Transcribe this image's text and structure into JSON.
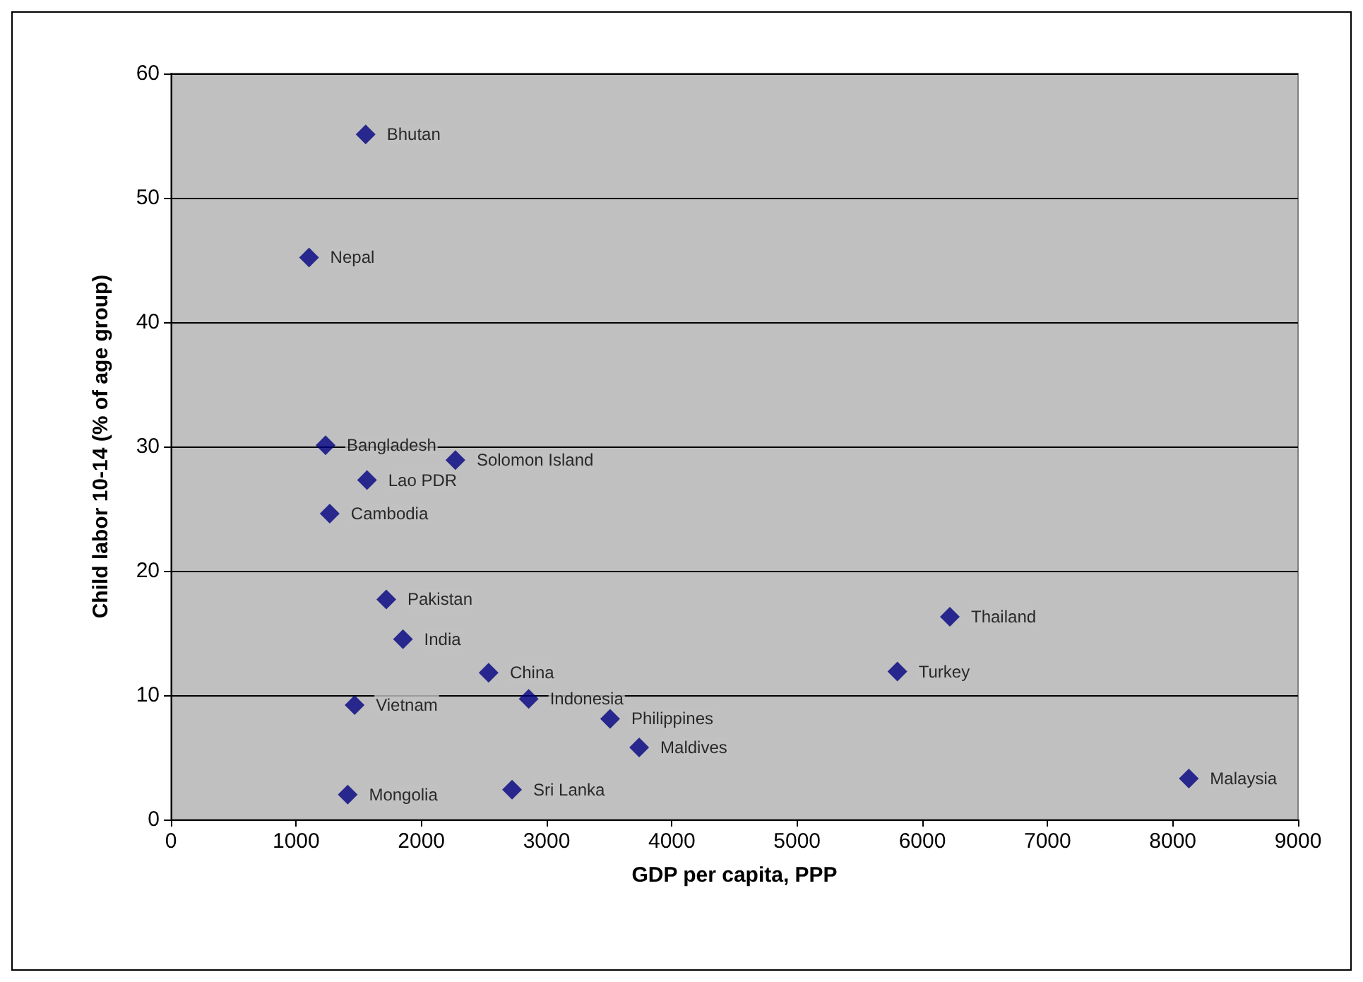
{
  "chart_data": {
    "type": "scatter",
    "xlabel": "GDP per capita, PPP",
    "ylabel": "Child labor 10-14 (% of age group)",
    "x": [
      1555,
      1103,
      1235,
      2272,
      1566,
      1268,
      1720,
      1853,
      2537,
      2857,
      1467,
      3507,
      3739,
      1412,
      2724,
      6220,
      5801,
      8128
    ],
    "values": [
      55.1,
      45.2,
      30.1,
      28.9,
      27.3,
      24.6,
      17.7,
      14.5,
      11.8,
      9.7,
      9.2,
      8.1,
      5.8,
      2.0,
      2.4,
      16.3,
      11.9,
      3.3
    ],
    "value_labels": [
      "Bhutan",
      "Nepal",
      "Bangladesh",
      "Solomon Island",
      "Lao PDR",
      "Cambodia",
      "Pakistan",
      "India",
      "China",
      "Indonesia",
      "Vietnam",
      "Philippines",
      "Maldives",
      "Mongolia",
      "Sri Lanka",
      "Thailand",
      "Turkey",
      "Malaysia"
    ],
    "color": "#000080",
    "marker": "diamond",
    "xlim": [
      0,
      9000
    ],
    "xticks": [
      0,
      1000,
      2000,
      3000,
      4000,
      5000,
      6000,
      7000,
      8000,
      9000
    ],
    "ylim": [
      0,
      60
    ],
    "yticks": [
      0,
      10,
      20,
      30,
      40,
      50,
      60
    ],
    "grid": "y"
  }
}
